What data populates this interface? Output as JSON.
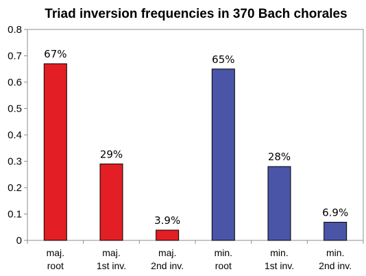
{
  "chart_data": {
    "type": "bar",
    "title": "Triad inversion frequencies in 370 Bach chorales",
    "xlabel": "",
    "ylabel": "",
    "ylim": [
      0,
      0.8
    ],
    "yticks": [
      "0",
      "0.1",
      "0.2",
      "0.3",
      "0.4",
      "0.5",
      "0.6",
      "0.7",
      "0.8"
    ],
    "grid": false,
    "categories": [
      [
        "maj.",
        "root"
      ],
      [
        "maj.",
        "1st inv."
      ],
      [
        "maj.",
        "2nd inv."
      ],
      [
        "min.",
        "root"
      ],
      [
        "min.",
        "1st inv."
      ],
      [
        "min.",
        "2nd inv."
      ]
    ],
    "values": [
      0.67,
      0.29,
      0.039,
      0.65,
      0.28,
      0.069
    ],
    "data_labels": [
      "67%",
      "29%",
      "3.9%",
      "65%",
      "28%",
      "6.9%"
    ],
    "colors": [
      "#e31e25",
      "#e31e25",
      "#e31e25",
      "#4a55a8",
      "#4a55a8",
      "#4a55a8"
    ]
  }
}
